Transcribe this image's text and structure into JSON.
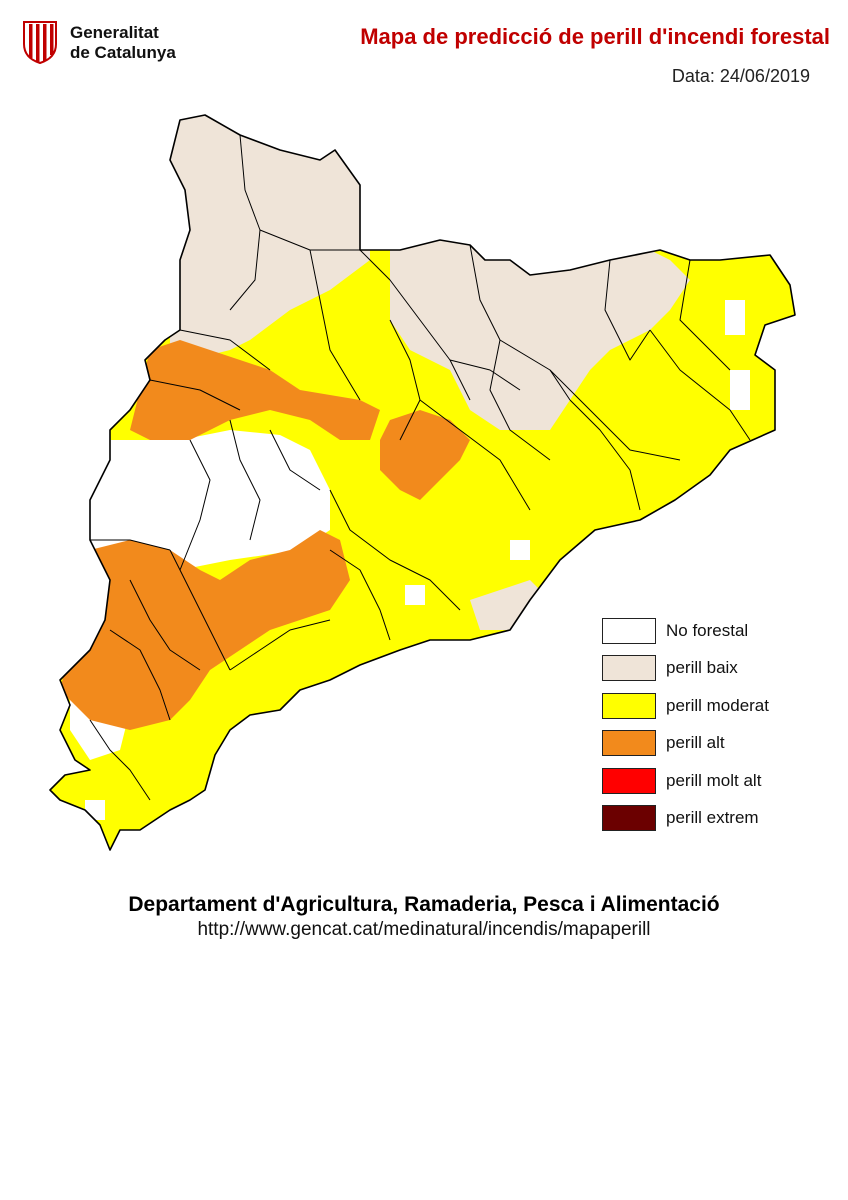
{
  "header": {
    "logo_line1": "Generalitat",
    "logo_line2": "de Catalunya",
    "title": "Mapa de predicció de perill d'incendi forestal",
    "date": "Data: 24/06/2019"
  },
  "legend": [
    {
      "label": "No forestal",
      "color": "#ffffff"
    },
    {
      "label": "perill baix",
      "color": "#efe4d8"
    },
    {
      "label": "perill moderat",
      "color": "#ffff00"
    },
    {
      "label": "perill alt",
      "color": "#f28a1c"
    },
    {
      "label": "perill molt alt",
      "color": "#ff0000"
    },
    {
      "label": "perill extrem",
      "color": "#6b0000"
    }
  ],
  "footer": {
    "department": "Departament d'Agricultura, Ramaderia, Pesca i Alimentació",
    "url": "http://www.gencat.cat/medinatural/incendis/mapaperill"
  }
}
